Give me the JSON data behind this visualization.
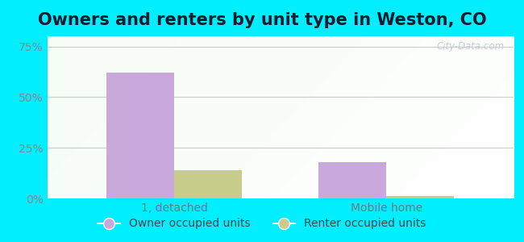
{
  "title": "Owners and renters by unit type in Weston, CO",
  "categories": [
    "1, detached",
    "Mobile home"
  ],
  "owner_values": [
    62,
    18
  ],
  "renter_values": [
    14,
    1
  ],
  "owner_color": "#c9a8dc",
  "renter_color": "#c8cc8a",
  "yticks": [
    0,
    25,
    50,
    75
  ],
  "ytick_labels": [
    "0%",
    "25%",
    "50%",
    "75%"
  ],
  "ylim": [
    0,
    80
  ],
  "background_outer": "#00eeff",
  "grid_color": "#cccccc",
  "title_fontsize": 15,
  "tick_fontsize": 10,
  "legend_fontsize": 10,
  "bar_width": 0.32,
  "watermark": "City-Data.com"
}
